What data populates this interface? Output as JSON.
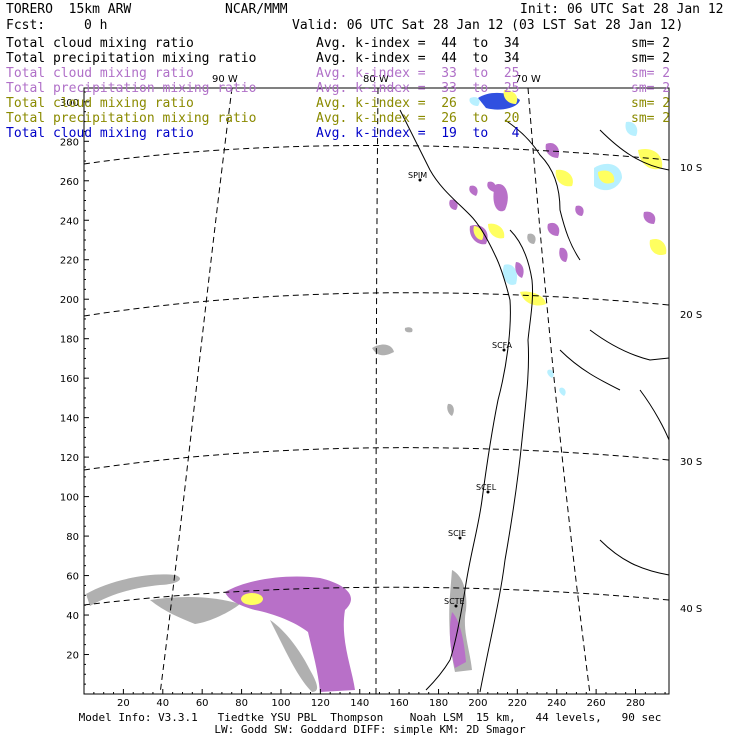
{
  "header": {
    "model": "TORERO  15km ARW",
    "org": "NCAR/MMM",
    "init": "Init: 06 UTC Sat 28 Jan 12",
    "fcst_label": "Fcst:",
    "fcst_value": "0 h",
    "valid": "Valid: 06 UTC Sat 28 Jan 12 (03 LST Sat 28 Jan 12)"
  },
  "legend": [
    {
      "name": "Total cloud mixing ratio",
      "avg": "Avg. k-index =  44  to  34",
      "sm": "sm= 2",
      "color": "#000000"
    },
    {
      "name": "Total precipitation mixing ratio",
      "avg": "Avg. k-index =  44  to  34",
      "sm": "sm= 2",
      "color": "#000000"
    },
    {
      "name": "Total cloud mixing ratio",
      "avg": "Avg. k-index =  33  to  25",
      "sm": "sm= 2",
      "color": "#b070c8"
    },
    {
      "name": "Total precipitation mixing ratio",
      "avg": "Avg. k-index =  33  to  25",
      "sm": "sm= 2",
      "color": "#b070c8"
    },
    {
      "name": "Total cloud mixing ratio",
      "avg": "Avg. k-index =  26",
      "sm": "sm= 2",
      "color": "#8a8a00"
    },
    {
      "name": "Total precipitation mixing ratio",
      "avg": "Avg. k-index =  26  to  20",
      "sm": "sm= 2",
      "color": "#8a8a00"
    },
    {
      "name": "Total cloud mixing ratio",
      "avg": "Avg. k-index =  19  to   4",
      "sm": "",
      "color": "#0000c8"
    }
  ],
  "map": {
    "x_ticks": [
      "20",
      "40",
      "60",
      "80",
      "100",
      "120",
      "140",
      "160",
      "180",
      "200",
      "220",
      "240",
      "260",
      "280"
    ],
    "y_ticks": [
      "20",
      "40",
      "60",
      "80",
      "100",
      "120",
      "140",
      "160",
      "180",
      "200",
      "220",
      "240",
      "260",
      "280",
      "300"
    ],
    "lon_labels": [
      "90 W",
      "80 W",
      "70 W"
    ],
    "lat_labels": [
      "10 S",
      "20 S",
      "30 S",
      "40 S"
    ],
    "cities": [
      "SPIM",
      "SCFA",
      "SCEL",
      "SCIE",
      "SCTE"
    ]
  },
  "footer": {
    "line1": "Model Info: V3.3.1   Tiedtke YSU PBL  Thompson    Noah LSM  15 km,   44 levels,   90 sec",
    "line2": "LW: Godd SW: Goddard DIFF: simple KM: 2D Smagor"
  },
  "colors": {
    "gray": "#b0b0b0",
    "purple": "#b870c8",
    "yellow": "#ffff60",
    "lightblue": "#b8f0ff",
    "blue": "#3050e0"
  }
}
